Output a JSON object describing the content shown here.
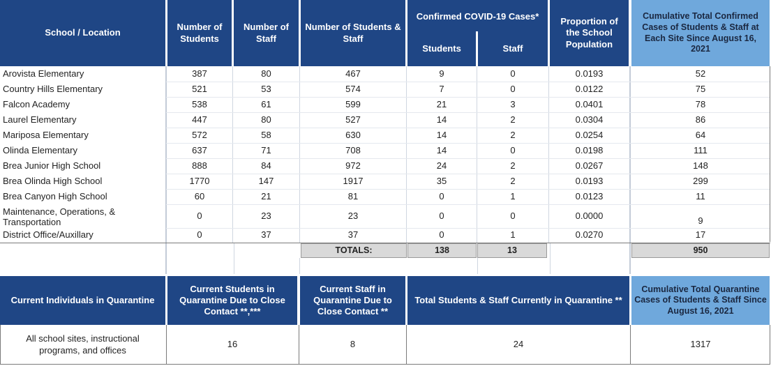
{
  "header": {
    "school_location": "School / Location",
    "num_students": "Number of Students",
    "num_staff": "Number of Staff",
    "num_students_staff": "Number of Students & Staff",
    "confirmed_cases": "Confirmed COVID-19 Cases*",
    "students": "Students",
    "staff": "Staff",
    "proportion": "Proportion of the School Population",
    "cumulative": "Cumulative Total Confirmed Cases of Students & Staff at Each Site Since August 16, 2021"
  },
  "rows": [
    {
      "name": "Arovista Elementary",
      "students": "387",
      "staff": "80",
      "total": "467",
      "case_students": "9",
      "case_staff": "0",
      "proportion": "0.0193",
      "cumulative": "52"
    },
    {
      "name": "Country Hills Elementary",
      "students": "521",
      "staff": "53",
      "total": "574",
      "case_students": "7",
      "case_staff": "0",
      "proportion": "0.0122",
      "cumulative": "75"
    },
    {
      "name": "Falcon Academy",
      "students": "538",
      "staff": "61",
      "total": "599",
      "case_students": "21",
      "case_staff": "3",
      "proportion": "0.0401",
      "cumulative": "78"
    },
    {
      "name": "Laurel Elementary",
      "students": "447",
      "staff": "80",
      "total": "527",
      "case_students": "14",
      "case_staff": "2",
      "proportion": "0.0304",
      "cumulative": "86"
    },
    {
      "name": "Mariposa Elementary",
      "students": "572",
      "staff": "58",
      "total": "630",
      "case_students": "14",
      "case_staff": "2",
      "proportion": "0.0254",
      "cumulative": "64"
    },
    {
      "name": "Olinda Elementary",
      "students": "637",
      "staff": "71",
      "total": "708",
      "case_students": "14",
      "case_staff": "0",
      "proportion": "0.0198",
      "cumulative": "111"
    },
    {
      "name": "Brea Junior High School",
      "students": "888",
      "staff": "84",
      "total": "972",
      "case_students": "24",
      "case_staff": "2",
      "proportion": "0.0267",
      "cumulative": "148"
    },
    {
      "name": "Brea Olinda High School",
      "students": "1770",
      "staff": "147",
      "total": "1917",
      "case_students": "35",
      "case_staff": "2",
      "proportion": "0.0193",
      "cumulative": "299"
    },
    {
      "name": "Brea Canyon High School",
      "students": "60",
      "staff": "21",
      "total": "81",
      "case_students": "0",
      "case_staff": "1",
      "proportion": "0.0123",
      "cumulative": "11"
    },
    {
      "name": "Maintenance, Operations, & Transportation",
      "students": "0",
      "staff": "23",
      "total": "23",
      "case_students": "0",
      "case_staff": "0",
      "proportion": "0.0000",
      "cumulative": "9"
    },
    {
      "name": "District Office/Auxillary",
      "students": "0",
      "staff": "37",
      "total": "37",
      "case_students": "0",
      "case_staff": "1",
      "proportion": "0.0270",
      "cumulative": "17"
    }
  ],
  "totals": {
    "label": "TOTALS:",
    "case_students": "138",
    "case_staff": "13",
    "cumulative": "950"
  },
  "quarantine": {
    "header_label": "Current Individuals in Quarantine",
    "header_students": "Current Students in Quarantine Due to Close Contact **,***",
    "header_staff": "Current Staff in Quarantine Due to Close Contact **",
    "header_total": "Total Students & Staff Currently in Quarantine **",
    "header_cumulative": "Cumulative Total Quarantine Cases of Students & Staff Since August 16, 2021",
    "row_label": "All school sites, instructional programs, and offices",
    "students": "16",
    "staff": "8",
    "total": "24",
    "cumulative": "1317"
  },
  "colors": {
    "header_dark": "#1f4685",
    "header_light": "#6fa8dc",
    "totals_gray": "#d9d9d9"
  }
}
